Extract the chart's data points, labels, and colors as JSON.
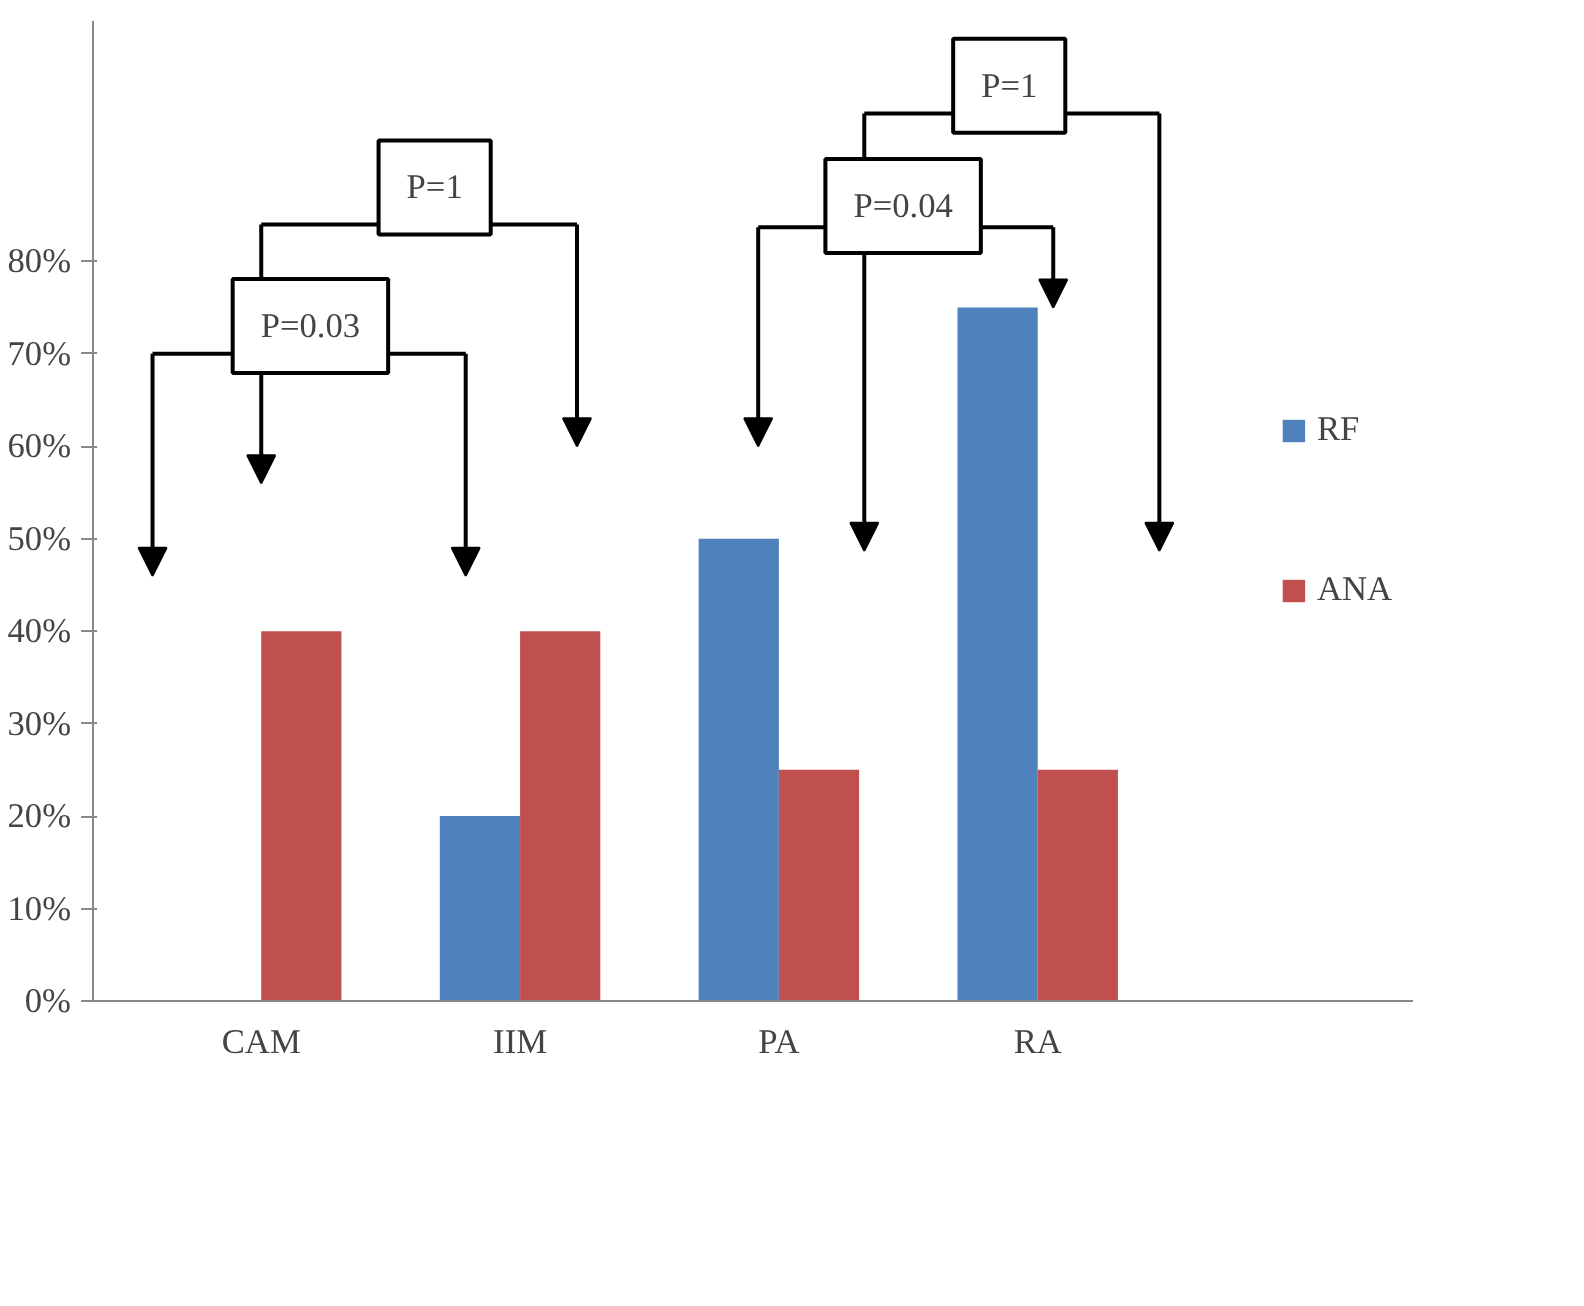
{
  "chart_data": {
    "type": "bar",
    "categories": [
      "CAM",
      "IIM",
      "PA",
      "RA"
    ],
    "series": [
      {
        "name": "RF",
        "color": "#4f81bd",
        "values": [
          0,
          20,
          50,
          75
        ]
      },
      {
        "name": "ANA",
        "color": "#c0504d",
        "values": [
          40,
          40,
          25,
          25
        ]
      }
    ],
    "ylim": [
      0,
      106
    ],
    "yticks": [
      {
        "value": 0,
        "label": "0%"
      },
      {
        "value": 10,
        "label": "10%"
      },
      {
        "value": 20,
        "label": "20%"
      },
      {
        "value": 30,
        "label": "30%"
      },
      {
        "value": 40,
        "label": "40%"
      },
      {
        "value": 50,
        "label": "50%"
      },
      {
        "value": 60,
        "label": "60%"
      },
      {
        "value": 70,
        "label": "70%"
      },
      {
        "value": 80,
        "label": "80%"
      }
    ],
    "annotations": [
      "P=0.03",
      "P=1",
      "P=0.04",
      "P=1"
    ],
    "grid": false,
    "legend": "right"
  }
}
